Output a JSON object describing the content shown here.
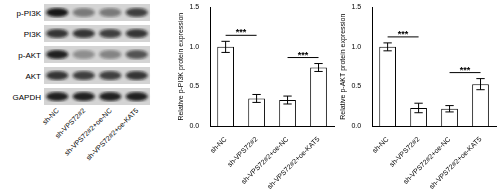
{
  "blot": {
    "rows": [
      "p-PI3K",
      "PI3K",
      "p-AKT",
      "AKT",
      "GAPDH"
    ],
    "lanes": [
      "sh-NC",
      "sh-VPS72#2",
      "sh-VPS72#2+oe-NC",
      "sh-VPS72#2+oe-KAT5"
    ]
  },
  "chart_data": [
    {
      "type": "bar",
      "y_label": "Relative p-PI3K protein expression",
      "categories": [
        "sh-NC",
        "sh-VPS72#2",
        "sh-VPS72#2+oe-NC",
        "sh-VPS72#2+oe-KAT5"
      ],
      "values": [
        1.0,
        0.35,
        0.33,
        0.74
      ],
      "errors": [
        0.07,
        0.05,
        0.05,
        0.05
      ],
      "color": "#ffffff",
      "ylim": [
        0,
        1.5
      ],
      "yticks": [
        {
          "value": 0,
          "label": "0.0"
        },
        {
          "value": 0.5,
          "label": "0.5"
        },
        {
          "value": 1,
          "label": "1.0"
        },
        {
          "value": 1.5,
          "label": "1.5"
        }
      ],
      "grid": false,
      "annotations": [
        {
          "text": "***",
          "between": [
            "sh-NC",
            "sh-VPS72#2"
          ]
        },
        {
          "text": "***",
          "between": [
            "sh-VPS72#2+oe-NC",
            "sh-VPS72#2+oe-KAT5"
          ]
        }
      ]
    },
    {
      "type": "bar",
      "y_label": "Relative p-AKT protein expression",
      "categories": [
        "sh-NC",
        "sh-VPS72#2",
        "sh-VPS72#2+oe-NC",
        "sh-VPS72#2+oe-KAT5"
      ],
      "values": [
        1.0,
        0.23,
        0.22,
        0.53
      ],
      "errors": [
        0.05,
        0.06,
        0.04,
        0.07
      ],
      "color": "#ffffff",
      "ylim": [
        0,
        1.5
      ],
      "yticks": [
        {
          "value": 0,
          "label": "0.0"
        },
        {
          "value": 0.5,
          "label": "0.5"
        },
        {
          "value": 1,
          "label": "1.0"
        },
        {
          "value": 1.5,
          "label": "1.5"
        }
      ],
      "grid": false,
      "annotations": [
        {
          "text": "***",
          "between": [
            "sh-NC",
            "sh-VPS72#2"
          ]
        },
        {
          "text": "***",
          "between": [
            "sh-VPS72#2+oe-NC",
            "sh-VPS72#2+oe-KAT5"
          ]
        }
      ]
    }
  ]
}
